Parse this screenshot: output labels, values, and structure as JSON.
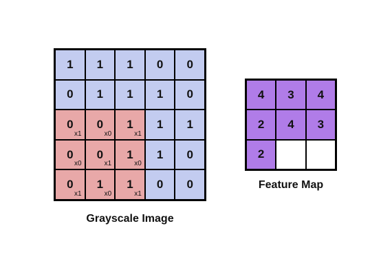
{
  "colors": {
    "input": "#c3ccf0",
    "kernel": "#e8a8a8",
    "output": "#b07ce8",
    "empty": "#ffffff"
  },
  "image": {
    "caption": "Grayscale Image",
    "rows": [
      [
        {
          "v": "1",
          "k": ""
        },
        {
          "v": "1",
          "k": ""
        },
        {
          "v": "1",
          "k": ""
        },
        {
          "v": "0",
          "k": ""
        },
        {
          "v": "0",
          "k": ""
        }
      ],
      [
        {
          "v": "0",
          "k": ""
        },
        {
          "v": "1",
          "k": ""
        },
        {
          "v": "1",
          "k": ""
        },
        {
          "v": "1",
          "k": ""
        },
        {
          "v": "0",
          "k": ""
        }
      ],
      [
        {
          "v": "0",
          "k": "x1"
        },
        {
          "v": "0",
          "k": "x0"
        },
        {
          "v": "1",
          "k": "x1"
        },
        {
          "v": "1",
          "k": ""
        },
        {
          "v": "1",
          "k": ""
        }
      ],
      [
        {
          "v": "0",
          "k": "x0"
        },
        {
          "v": "0",
          "k": "x1"
        },
        {
          "v": "1",
          "k": "x0"
        },
        {
          "v": "1",
          "k": ""
        },
        {
          "v": "0",
          "k": ""
        }
      ],
      [
        {
          "v": "0",
          "k": "x1"
        },
        {
          "v": "1",
          "k": "x0"
        },
        {
          "v": "1",
          "k": "x1"
        },
        {
          "v": "0",
          "k": ""
        },
        {
          "v": "0",
          "k": ""
        }
      ]
    ]
  },
  "feature_map": {
    "caption": "Feature Map",
    "rows": [
      [
        "4",
        "3",
        "4"
      ],
      [
        "2",
        "4",
        "3"
      ],
      [
        "2",
        "",
        ""
      ]
    ]
  }
}
